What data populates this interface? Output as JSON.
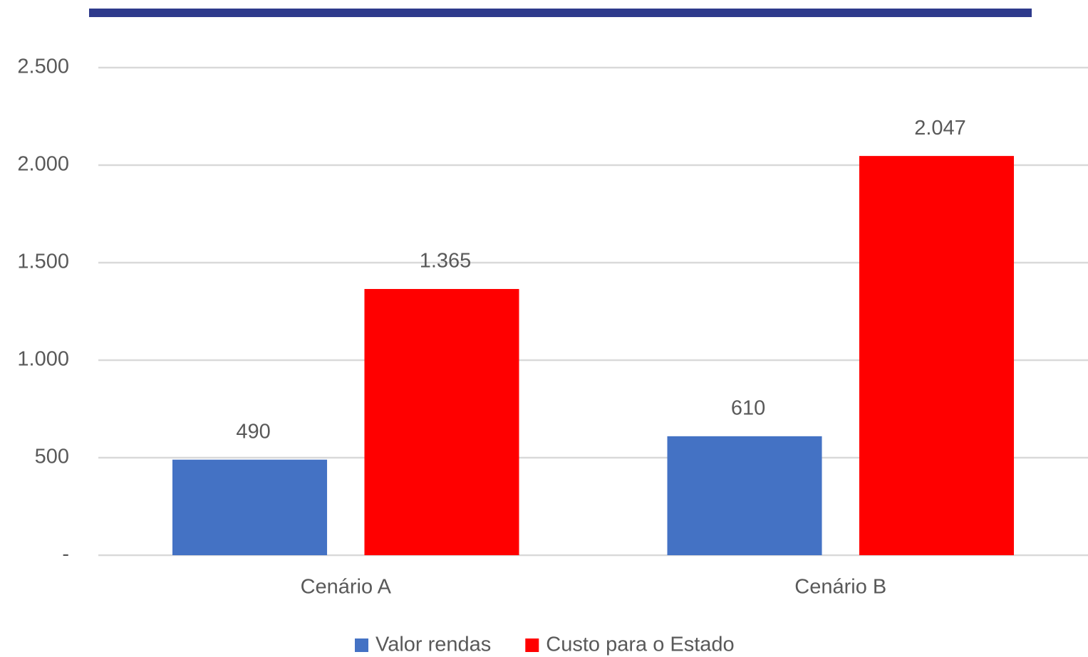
{
  "chart_data": {
    "type": "bar",
    "categories": [
      "Cenário A",
      "Cenário B"
    ],
    "series": [
      {
        "name": "Valor rendas",
        "color": "#4472c4",
        "values": [
          490,
          610
        ],
        "value_labels": [
          "490",
          "610"
        ]
      },
      {
        "name": "Custo para o Estado",
        "color": "#ff0000",
        "values": [
          1365,
          2047
        ],
        "value_labels": [
          "1.365",
          "2.047"
        ]
      }
    ],
    "ylim": [
      0,
      2500
    ],
    "yticks": [
      {
        "value": 0,
        "label": "-"
      },
      500,
      {
        "value": 1000,
        "label": "1.000"
      },
      {
        "value": 1500,
        "label": "1.500"
      },
      {
        "value": 2000,
        "label": "2.000"
      },
      {
        "value": 2500,
        "label": "2.500"
      }
    ],
    "grid": true,
    "legend": "bottom"
  }
}
